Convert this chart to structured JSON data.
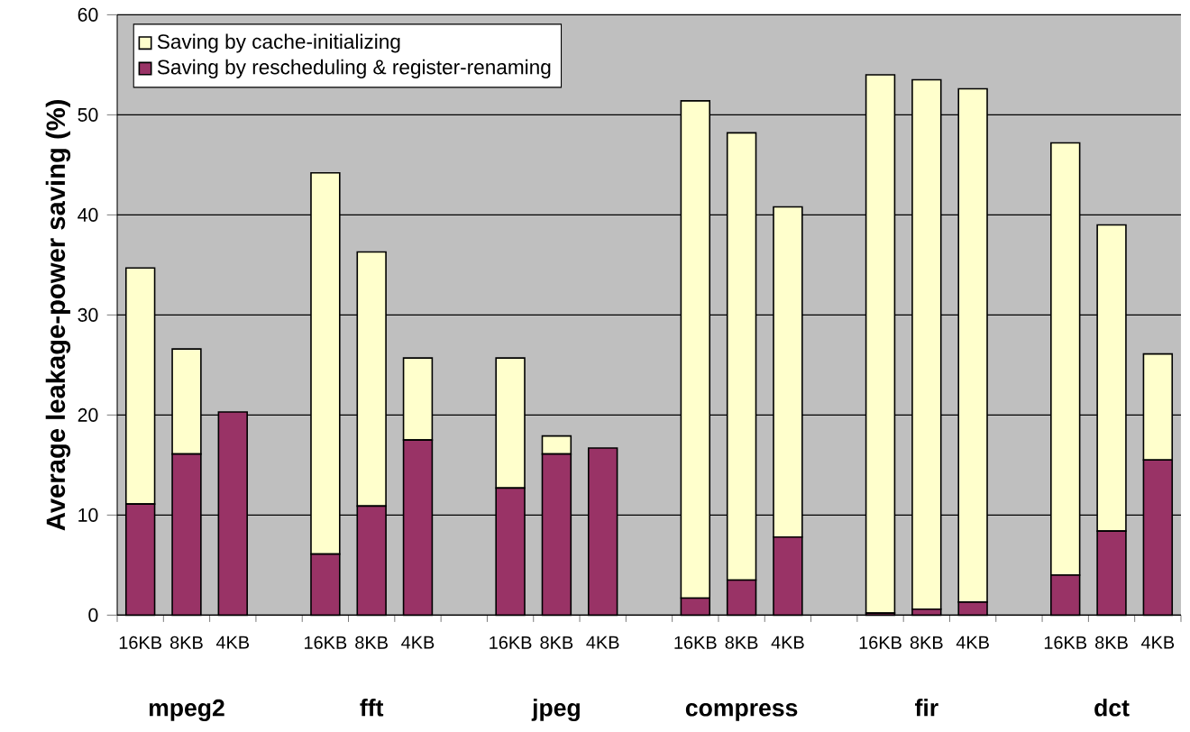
{
  "chart_data": {
    "type": "bar",
    "stacked": true,
    "ylabel": "Average leakage-power saving (%)",
    "categories": [
      "16KB",
      "8KB",
      "4KB",
      null,
      "16KB",
      "8KB",
      "4KB",
      null,
      "16KB",
      "8KB",
      "4KB",
      null,
      "16KB",
      "8KB",
      "4KB",
      null,
      "16KB",
      "8KB",
      "4KB",
      null,
      "16KB",
      "8KB",
      "4KB"
    ],
    "series": [
      {
        "name": "Saving by rescheduling & register-renaming",
        "color": "#993366",
        "values": [
          11.1,
          16.1,
          20.3,
          null,
          6.1,
          10.9,
          17.5,
          null,
          12.7,
          16.1,
          16.7,
          null,
          1.7,
          3.5,
          7.8,
          null,
          0.2,
          0.6,
          1.3,
          null,
          4.0,
          8.4,
          15.5
        ]
      },
      {
        "name": "Saving by cache-initializing",
        "color": "#ffffcc",
        "values": [
          23.6,
          10.5,
          0,
          null,
          38.1,
          25.4,
          8.2,
          null,
          13.0,
          1.8,
          0,
          null,
          49.7,
          44.7,
          33.0,
          null,
          53.8,
          52.9,
          51.3,
          null,
          43.2,
          30.6,
          10.6
        ]
      }
    ],
    "annotations": [
      "mpeg2",
      "fft",
      "jpeg",
      "compress",
      "fir",
      "dct"
    ],
    "ylim": [
      0,
      60
    ],
    "yticks": [
      0,
      10,
      20,
      30,
      40,
      50,
      60
    ],
    "grid": "y",
    "legend": "top left"
  }
}
